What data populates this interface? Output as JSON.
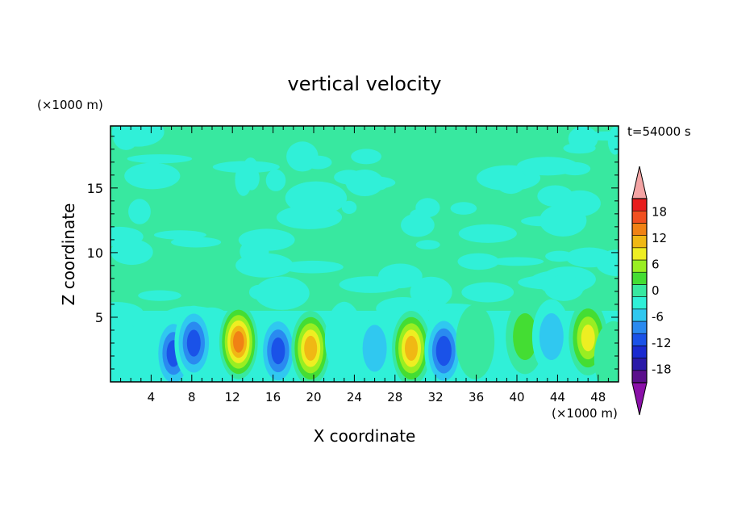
{
  "chart_data": {
    "type": "heatmap",
    "title": "vertical velocity",
    "xlabel": "X coordinate",
    "ylabel": "Z coordinate",
    "x_unit": "(×1000 m)",
    "y_unit": "(×1000 m)",
    "time_label": "t=54000 s",
    "xlim": [
      0,
      50
    ],
    "ylim": [
      0,
      19.8
    ],
    "x_ticks": [
      4,
      8,
      12,
      16,
      20,
      24,
      28,
      32,
      36,
      40,
      44,
      48
    ],
    "y_ticks": [
      5,
      10,
      15
    ],
    "colorbar": {
      "ticks": [
        18,
        12,
        6,
        0,
        -6,
        -12,
        -18
      ],
      "levels": [
        -21,
        -18,
        -15,
        -12,
        -9,
        -6,
        -3,
        0,
        3,
        6,
        9,
        12,
        15,
        18,
        21
      ],
      "colors": [
        "#5a0f8c",
        "#2a1aa8",
        "#1a2ad0",
        "#1a52e8",
        "#2a8af0",
        "#30c8f0",
        "#30f0d8",
        "#38e8a0",
        "#44dd33",
        "#99ee22",
        "#eeee22",
        "#f0b814",
        "#f08214",
        "#f05020",
        "#e81e1e"
      ],
      "over_color": "#f4a4a4",
      "under_color": "#8a10a8"
    },
    "features": [
      {
        "x": 1.0,
        "z": 1.2,
        "w": -2
      },
      {
        "x": 6.2,
        "z": 2.2,
        "w": -12
      },
      {
        "x": 8.2,
        "z": 3.0,
        "w": -12
      },
      {
        "x": 12.6,
        "z": 3.1,
        "w": 19
      },
      {
        "x": 16.5,
        "z": 2.4,
        "w": -12
      },
      {
        "x": 19.7,
        "z": 2.6,
        "w": 16
      },
      {
        "x": 23.0,
        "z": 3.3,
        "w": -5
      },
      {
        "x": 26.0,
        "z": 2.6,
        "w": -6
      },
      {
        "x": 29.6,
        "z": 2.6,
        "w": 16
      },
      {
        "x": 32.8,
        "z": 2.4,
        "w": -13
      },
      {
        "x": 35.9,
        "z": 3.1,
        "w": 4
      },
      {
        "x": 40.8,
        "z": 3.5,
        "w": 6
      },
      {
        "x": 43.4,
        "z": 3.5,
        "w": -6
      },
      {
        "x": 47.0,
        "z": 3.4,
        "w": 12
      },
      {
        "x": 49.5,
        "z": 1.8,
        "w": 5
      }
    ]
  }
}
